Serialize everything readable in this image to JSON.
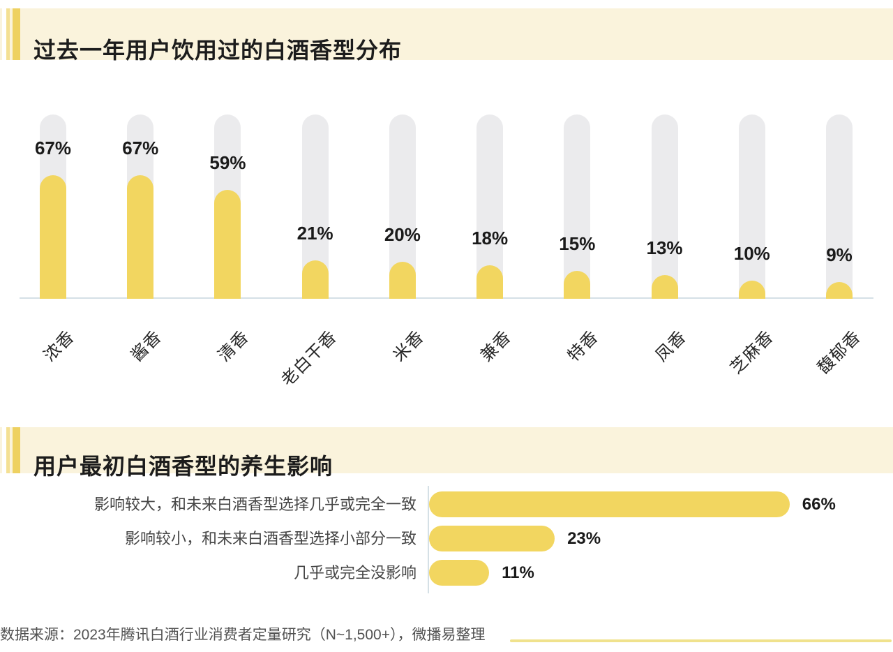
{
  "chart_data": [
    {
      "type": "bar",
      "orientation": "vertical",
      "title": "过去一年用户饮用过的白酒香型分布",
      "categories": [
        "浓香",
        "酱香",
        "清香",
        "老白干香",
        "米香",
        "兼香",
        "特香",
        "凤香",
        "芝麻香",
        "馥郁香"
      ],
      "values": [
        67,
        67,
        59,
        21,
        20,
        18,
        15,
        13,
        10,
        9
      ],
      "data_labels": [
        "67%",
        "67%",
        "59%",
        "21%",
        "20%",
        "18%",
        "15%",
        "13%",
        "10%",
        "9%"
      ],
      "unit": "%",
      "ylim": [
        0,
        100
      ],
      "xlabel": "",
      "ylabel": "",
      "grid": false,
      "legend": "none",
      "track_bars_full_height": true
    },
    {
      "type": "bar",
      "orientation": "horizontal",
      "title": "用户最初白酒香型的养生影响",
      "categories": [
        "影响较大，和未来白酒香型选择几乎或完全一致",
        "影响较小，和未来白酒香型选择小部分一致",
        "几乎或完全没影响"
      ],
      "values": [
        66,
        23,
        11
      ],
      "data_labels": [
        "66%",
        "23%",
        "11%"
      ],
      "unit": "%",
      "xlim": [
        0,
        100
      ],
      "grid": false,
      "legend": "none"
    }
  ],
  "footer": {
    "source": "数据来源：2023年腾讯白酒行业消费者定量研究（N~1,500+），微播易整理"
  },
  "colors": {
    "band_bg": "#faf3dc",
    "stripe_light": "#f4e093",
    "stripe_dark": "#eed161",
    "bar_yellow": "#f2d660",
    "track_gray": "#ebebed",
    "axis_line": "#d5e0e6",
    "value_label": "#1a1a1a",
    "category_label": "#262626",
    "row_label": "#454545",
    "footer_text": "#525252",
    "footer_line": "#f0e28d"
  }
}
